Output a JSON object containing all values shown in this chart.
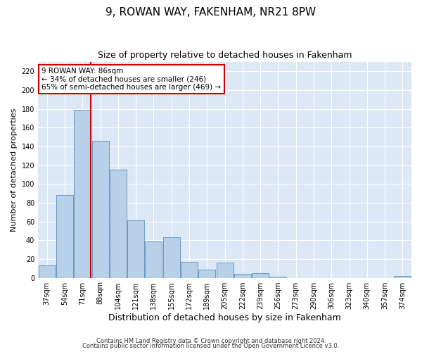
{
  "title": "9, ROWAN WAY, FAKENHAM, NR21 8PW",
  "subtitle": "Size of property relative to detached houses in Fakenham",
  "xlabel": "Distribution of detached houses by size in Fakenham",
  "ylabel": "Number of detached properties",
  "bar_labels": [
    "37sqm",
    "54sqm",
    "71sqm",
    "88sqm",
    "104sqm",
    "121sqm",
    "138sqm",
    "155sqm",
    "172sqm",
    "189sqm",
    "205sqm",
    "222sqm",
    "239sqm",
    "256sqm",
    "273sqm",
    "290sqm",
    "306sqm",
    "323sqm",
    "340sqm",
    "357sqm",
    "374sqm"
  ],
  "bar_values": [
    13,
    88,
    179,
    146,
    115,
    61,
    39,
    43,
    17,
    9,
    16,
    4,
    5,
    1,
    0,
    0,
    0,
    0,
    0,
    0,
    2
  ],
  "bar_color": "#b8d0e8",
  "bar_edgecolor": "#5a8fbe",
  "vline_color": "#cc0000",
  "ylim": [
    0,
    230
  ],
  "yticks": [
    0,
    20,
    40,
    60,
    80,
    100,
    120,
    140,
    160,
    180,
    200,
    220
  ],
  "annotation_title": "9 ROWAN WAY: 86sqm",
  "annotation_line1": "← 34% of detached houses are smaller (246)",
  "annotation_line2": "65% of semi-detached houses are larger (469) →",
  "annotation_box_color": "#ffffff",
  "annotation_box_edgecolor": "#cc0000",
  "footnote1": "Contains HM Land Registry data © Crown copyright and database right 2024.",
  "footnote2": "Contains public sector information licensed under the Open Government Licence v3.0.",
  "background_color": "#ffffff",
  "plot_bg_color": "#dce8f5",
  "grid_color": "#ffffff",
  "title_fontsize": 11,
  "subtitle_fontsize": 9,
  "xlabel_fontsize": 9,
  "ylabel_fontsize": 8,
  "tick_fontsize": 7,
  "annotation_fontsize": 7.5,
  "footnote_fontsize": 6
}
